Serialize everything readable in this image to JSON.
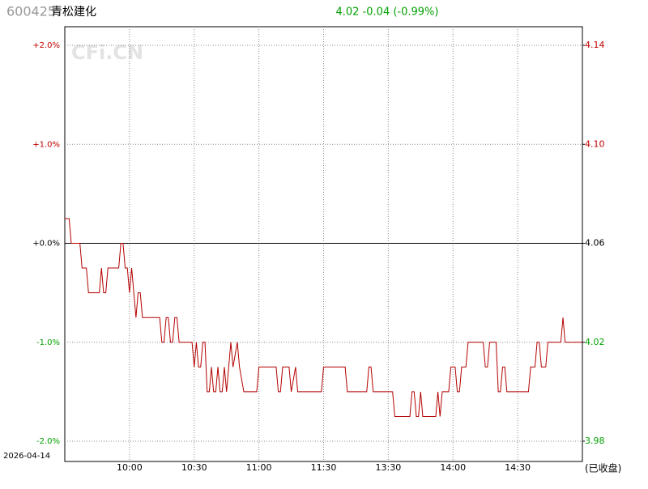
{
  "header": {
    "code": "600425",
    "name": "青松建化",
    "quote": "4.02 -0.04 (-0.99%)"
  },
  "watermark": "CFi.CN",
  "date": "2026-04-14",
  "status": "(已收盘)",
  "chart_data": {
    "type": "line",
    "x": [
      0,
      2,
      3,
      7,
      8,
      10,
      11,
      16,
      17,
      18,
      19,
      20,
      25,
      26,
      27,
      28,
      29,
      30,
      31,
      32,
      33,
      34,
      35,
      36,
      44,
      45,
      46,
      47,
      48,
      49,
      50,
      51,
      52,
      53,
      59,
      60,
      61,
      62,
      63,
      64,
      65,
      66,
      67,
      68,
      69,
      70,
      71,
      72,
      73,
      74,
      75,
      77,
      78,
      80,
      81,
      83,
      89,
      90,
      98,
      99,
      100,
      101,
      104,
      105,
      107,
      108,
      119,
      120,
      130,
      131,
      140,
      141,
      142,
      143,
      152,
      153,
      160,
      161,
      162,
      163,
      164,
      165,
      166,
      172,
      173,
      174,
      175,
      178,
      179,
      181,
      182,
      183,
      184,
      186,
      187,
      194,
      195,
      196,
      197,
      200,
      201,
      202,
      203,
      204,
      205,
      215,
      216,
      218,
      219,
      220,
      221,
      223,
      224,
      230,
      231,
      232,
      240
    ],
    "series": [
      {
        "color": "#b40000",
        "values": [
          4.07,
          4.07,
          4.06,
          4.06,
          4.05,
          4.05,
          4.04,
          4.04,
          4.05,
          4.04,
          4.04,
          4.05,
          4.05,
          4.06,
          4.06,
          4.05,
          4.05,
          4.04,
          4.05,
          4.04,
          4.03,
          4.04,
          4.04,
          4.03,
          4.03,
          4.02,
          4.02,
          4.03,
          4.03,
          4.02,
          4.02,
          4.03,
          4.03,
          4.02,
          4.02,
          4.01,
          4.02,
          4.01,
          4.01,
          4.02,
          4.02,
          4.0,
          4.0,
          4.01,
          4.0,
          4.0,
          4.01,
          4.0,
          4.0,
          4.01,
          4.0,
          4.02,
          4.01,
          4.02,
          4.01,
          4.0,
          4.0,
          4.01,
          4.01,
          4.0,
          4.0,
          4.01,
          4.01,
          4.0,
          4.01,
          4.0,
          4.0,
          4.01,
          4.01,
          4.0,
          4.0,
          4.01,
          4.01,
          4.0,
          4.0,
          3.99,
          3.99,
          4.0,
          4.0,
          3.99,
          3.99,
          4.0,
          3.99,
          3.99,
          4.0,
          3.99,
          4.0,
          4.0,
          4.01,
          4.01,
          4.0,
          4.0,
          4.01,
          4.01,
          4.02,
          4.02,
          4.01,
          4.01,
          4.02,
          4.02,
          4.0,
          4.0,
          4.01,
          4.01,
          4.0,
          4.0,
          4.01,
          4.01,
          4.02,
          4.02,
          4.01,
          4.01,
          4.02,
          4.02,
          4.03,
          4.02,
          4.02
        ]
      }
    ],
    "xlim": [
      0,
      240
    ],
    "xticks": [
      {
        "value": 30,
        "label": "10:00"
      },
      {
        "value": 60,
        "label": "10:30"
      },
      {
        "value": 90,
        "label": "11:00"
      },
      {
        "value": 120,
        "label": "11:30"
      },
      {
        "value": 150,
        "label": "13:30"
      },
      {
        "value": 180,
        "label": "14:00"
      },
      {
        "value": 210,
        "label": "14:30"
      }
    ],
    "ylim": [
      3.98,
      4.14
    ],
    "yticks": [
      3.98,
      4.02,
      4.06,
      {
        "value": 4.1,
        "label": "4.10"
      },
      4.14
    ],
    "y2lim": [
      -2,
      2
    ],
    "y2ticks": [
      {
        "value": -2,
        "label": "-2.0%"
      },
      {
        "value": -1,
        "label": "-1.0%"
      },
      {
        "value": 0,
        "label": "+0.0%"
      },
      {
        "value": 1,
        "label": "+1.0%"
      },
      {
        "value": 2,
        "label": "+2.0%"
      }
    ],
    "up_color": "#c00000",
    "down_color": "#00a000",
    "flat_color": "#000000",
    "grid": true
  }
}
